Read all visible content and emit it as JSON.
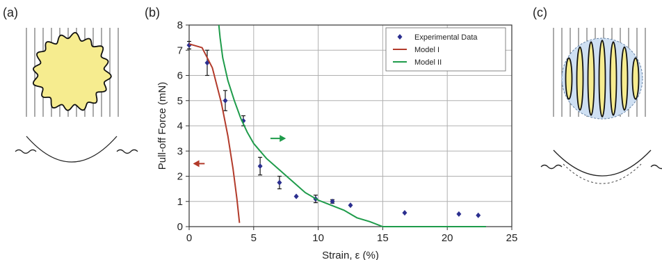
{
  "panels": {
    "a": {
      "label": "(a)"
    },
    "b": {
      "label": "(b)"
    },
    "c": {
      "label": "(c)"
    }
  },
  "colors": {
    "axis": "#333333",
    "grid": "#b0b0b0",
    "experimental": "#2b2f8f",
    "model_1": "#b23a2a",
    "model_2": "#1e9b4a",
    "patch_fill": "#f6ec8f",
    "bubble_fill": "#cfe0f3"
  },
  "chart_data": {
    "type": "scatter",
    "xlabel": "Strain, ε (%)",
    "ylabel": "Pull-off Force (mN)",
    "xlim": [
      0,
      25
    ],
    "ylim": [
      0,
      8
    ],
    "xticks": [
      0,
      5,
      10,
      15,
      20,
      25
    ],
    "yticks": [
      0,
      1,
      2,
      3,
      4,
      5,
      6,
      7,
      8
    ],
    "grid": true,
    "legend_position": "top-right",
    "series": [
      {
        "name": "Experimental Data",
        "kind": "points",
        "x": [
          0,
          1.4,
          2.8,
          4.2,
          5.5,
          7.0,
          8.3,
          9.8,
          11.1,
          12.5,
          16.7,
          20.9,
          22.4
        ],
        "y": [
          7.2,
          6.5,
          5.0,
          4.2,
          2.4,
          1.75,
          1.2,
          1.1,
          1.0,
          0.85,
          0.55,
          0.5,
          0.45
        ],
        "err": [
          0.15,
          0.5,
          0.4,
          0.2,
          0.35,
          0.25,
          0.0,
          0.15,
          0.07,
          0.0,
          0.0,
          0.0,
          0.0
        ]
      },
      {
        "name": "Model I",
        "kind": "line",
        "x": [
          0,
          1.0,
          1.8,
          2.5,
          3.0,
          3.4,
          3.7,
          3.9
        ],
        "y": [
          7.25,
          7.1,
          6.3,
          4.9,
          3.6,
          2.3,
          1.1,
          0.15
        ]
      },
      {
        "name": "Model II",
        "kind": "line",
        "x": [
          2.3,
          2.4,
          2.6,
          3.0,
          3.5,
          4.0,
          4.5,
          5.0,
          5.5,
          6.0,
          7.0,
          8.0,
          9.0,
          10.0,
          11.0,
          12.0,
          13.0,
          14.0,
          15.0,
          16.0,
          23.0
        ],
        "y": [
          8.0,
          7.5,
          6.7,
          5.8,
          5.0,
          4.3,
          3.75,
          3.3,
          3.0,
          2.7,
          2.25,
          1.8,
          1.35,
          1.05,
          0.85,
          0.65,
          0.35,
          0.2,
          0.0,
          0.0,
          0.0
        ]
      }
    ],
    "annotations": [
      {
        "type": "arrow",
        "direction": "left",
        "series": "Model I",
        "x_start": 1.2,
        "x_end": 0.3,
        "y": 2.5
      },
      {
        "type": "arrow",
        "direction": "right",
        "series": "Model II",
        "x_start": 6.3,
        "x_end": 7.5,
        "y": 3.5
      }
    ]
  }
}
